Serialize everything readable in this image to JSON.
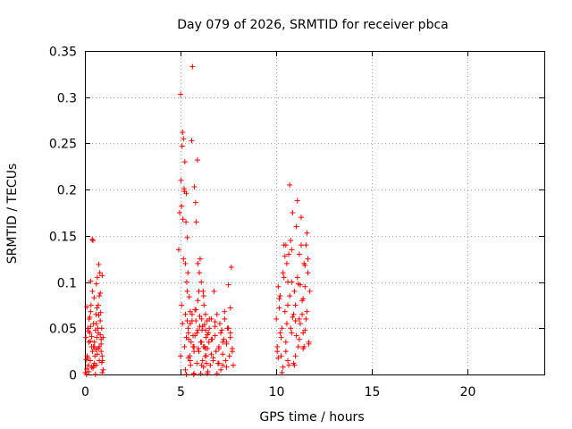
{
  "chart_data": {
    "type": "scatter",
    "title": "Day 079 of 2026, SRMTID for receiver pbca",
    "xlabel": "GPS time / hours",
    "ylabel": "SRMTID / TECUs",
    "xlim": [
      0,
      24
    ],
    "ylim": [
      0,
      0.35
    ],
    "x_ticks": [
      0,
      5,
      10,
      15,
      20
    ],
    "x_tick_labels": [
      "0",
      "5",
      "10",
      "15",
      "20"
    ],
    "y_ticks": [
      0,
      0.05,
      0.1,
      0.15,
      0.2,
      0.25,
      0.3,
      0.35
    ],
    "y_tick_labels": [
      "0",
      "0.05",
      "0.1",
      "0.15",
      "0.2",
      "0.25",
      "0.3",
      "0.35"
    ],
    "grid": true,
    "marker": "+",
    "series": [
      {
        "name": "SRMTID",
        "color": "#ff0000",
        "x": [
          0.02,
          0.05,
          0.08,
          0.1,
          0.12,
          0.15,
          0.18,
          0.2,
          0.22,
          0.25,
          0.28,
          0.3,
          0.32,
          0.35,
          0.38,
          0.4,
          0.42,
          0.45,
          0.48,
          0.5,
          0.52,
          0.55,
          0.58,
          0.6,
          0.62,
          0.65,
          0.68,
          0.7,
          0.72,
          0.75,
          0.78,
          0.8,
          0.82,
          0.85,
          0.88,
          0.9,
          0.92,
          0.95,
          0.1,
          0.2,
          0.3,
          0.4,
          0.5,
          0.6,
          0.7,
          0.8,
          0.9,
          0.15,
          0.25,
          0.35,
          0.45,
          0.55,
          0.65,
          0.75,
          0.85,
          0.6,
          0.63,
          0.8,
          0.85,
          0.9,
          0.7,
          0.75,
          0.5,
          0.45,
          0.3,
          0.35,
          0.95,
          0.88,
          0.72,
          0.58,
          0.42,
          0.28,
          0.18,
          0.08,
          4.9,
          4.95,
          5.0,
          5.02,
          5.05,
          5.08,
          5.1,
          5.12,
          5.15,
          5.18,
          5.2,
          5.22,
          5.25,
          5.28,
          5.3,
          5.32,
          5.35,
          5.38,
          5.4,
          5.42,
          5.45,
          5.48,
          5.5,
          5.52,
          5.55,
          5.58,
          5.6,
          5.62,
          5.65,
          5.68,
          5.7,
          5.72,
          5.75,
          5.78,
          5.8,
          5.82,
          5.85,
          5.88,
          5.9,
          5.92,
          5.95,
          5.98,
          6.0,
          6.02,
          6.05,
          6.08,
          6.1,
          6.12,
          6.15,
          6.18,
          6.2,
          6.22,
          6.25,
          6.28,
          6.3,
          6.32,
          6.35,
          6.38,
          6.4,
          6.42,
          6.45,
          6.48,
          6.5,
          6.55,
          6.6,
          6.65,
          6.7,
          6.75,
          6.8,
          6.85,
          6.9,
          6.95,
          7.0,
          7.05,
          7.1,
          7.15,
          7.2,
          7.25,
          7.3,
          7.35,
          7.4,
          7.45,
          7.5,
          7.55,
          7.6,
          7.65,
          7.7,
          7.75,
          5.0,
          5.05,
          5.1,
          5.15,
          5.2,
          5.25,
          5.3,
          5.35,
          5.4,
          5.5,
          5.6,
          5.65,
          5.7,
          5.75,
          5.8,
          5.85,
          5.9,
          5.95,
          6.0,
          6.05,
          6.1,
          6.15,
          6.2,
          6.25,
          6.3,
          6.35,
          6.4,
          6.5,
          6.6,
          6.7,
          6.8,
          6.9,
          7.0,
          7.1,
          7.2,
          7.3,
          7.4,
          7.5,
          7.6,
          7.7,
          5.25,
          5.3,
          5.35,
          5.4,
          5.5,
          5.7,
          5.9,
          6.1,
          6.2,
          6.3,
          6.4,
          6.6,
          6.8,
          7.0,
          7.2,
          7.4,
          7.6,
          10.0,
          10.05,
          10.1,
          10.15,
          10.2,
          10.25,
          10.3,
          10.35,
          10.4,
          10.45,
          10.5,
          10.55,
          10.6,
          10.65,
          10.7,
          10.75,
          10.8,
          10.85,
          10.9,
          10.95,
          11.0,
          11.05,
          11.1,
          11.15,
          11.2,
          11.25,
          11.3,
          11.35,
          11.4,
          11.45,
          11.5,
          11.55,
          11.6,
          11.65,
          11.7,
          11.75,
          10.1,
          10.2,
          10.3,
          10.4,
          10.5,
          10.6,
          10.7,
          10.8,
          10.9,
          11.0,
          11.1,
          11.2,
          11.3,
          11.4,
          11.5,
          11.6,
          11.7,
          10.15,
          10.35,
          10.55,
          10.75,
          10.95,
          11.15,
          11.35,
          11.55,
          10.25,
          10.45,
          10.65,
          10.85,
          11.05,
          11.25,
          11.45,
          11.65,
          10.05,
          10.5,
          11.0,
          11.5,
          10.6,
          10.8,
          11.2,
          11.4
        ],
        "y": [
          0.002,
          0.04,
          0.0,
          0.073,
          0.02,
          0.05,
          0.01,
          0.003,
          0.06,
          0.045,
          0.015,
          0.101,
          0.075,
          0.03,
          0.146,
          0.025,
          0.145,
          0.055,
          0.083,
          0.035,
          0.02,
          0.0,
          0.065,
          0.01,
          0.04,
          0.105,
          0.05,
          0.075,
          0.119,
          0.03,
          0.11,
          0.088,
          0.067,
          0.025,
          0.05,
          0.107,
          0.015,
          0.04,
          0.006,
          0.035,
          0.068,
          0.09,
          0.012,
          0.055,
          0.028,
          0.043,
          0.002,
          0.018,
          0.062,
          0.008,
          0.03,
          0.048,
          0.022,
          0.085,
          0.033,
          0.098,
          0.072,
          0.058,
          0.038,
          0.02,
          0.045,
          0.015,
          0.03,
          0.009,
          0.052,
          0.041,
          0.005,
          0.013,
          0.064,
          0.027,
          0.007,
          0.036,
          0.047,
          0.016,
          0.135,
          0.175,
          0.303,
          0.21,
          0.182,
          0.247,
          0.262,
          0.168,
          0.255,
          0.201,
          0.198,
          0.23,
          0.12,
          0.165,
          0.196,
          0.1,
          0.148,
          0.11,
          0.05,
          0.038,
          0.084,
          0.02,
          0.055,
          0.01,
          0.035,
          0.253,
          0.065,
          0.333,
          0.042,
          0.0,
          0.025,
          0.203,
          0.07,
          0.186,
          0.058,
          0.165,
          0.045,
          0.232,
          0.12,
          0.028,
          0.09,
          0.11,
          0.052,
          0.125,
          0.035,
          0.1,
          0.06,
          0.048,
          0.015,
          0.09,
          0.03,
          0.075,
          0.054,
          0.02,
          0.065,
          0.04,
          0.012,
          0.058,
          0.028,
          0.003,
          0.045,
          0.035,
          0.05,
          0.01,
          0.06,
          0.038,
          0.018,
          0.09,
          0.042,
          0.025,
          0.065,
          0.012,
          0.03,
          0.055,
          0.005,
          0.048,
          0.022,
          0.038,
          0.06,
          0.015,
          0.033,
          0.05,
          0.097,
          0.02,
          0.045,
          0.116,
          0.028,
          0.01,
          0.02,
          0.075,
          0.055,
          0.125,
          0.03,
          0.065,
          0.0,
          0.09,
          0.045,
          0.015,
          0.058,
          0.03,
          0.001,
          0.042,
          0.07,
          0.012,
          0.08,
          0.025,
          0.063,
          0.001,
          0.035,
          0.052,
          0.008,
          0.03,
          0.048,
          0.02,
          0.001,
          0.06,
          0.038,
          0.015,
          0.052,
          0.001,
          0.028,
          0.045,
          0.01,
          0.068,
          0.035,
          0.05,
          0.072,
          0.025,
          0.005,
          0.04,
          0.058,
          0.018,
          0.068,
          0.03,
          0.048,
          0.01,
          0.085,
          0.028,
          0.043,
          0.022,
          0.057,
          0.012,
          0.035,
          0.008,
          0.04,
          0.06,
          0.03,
          0.095,
          0.082,
          0.045,
          0.02,
          0.05,
          0.11,
          0.14,
          0.068,
          0.035,
          0.12,
          0.015,
          0.13,
          0.085,
          0.05,
          0.1,
          0.175,
          0.065,
          0.09,
          0.075,
          0.16,
          0.105,
          0.03,
          0.13,
          0.055,
          0.17,
          0.08,
          0.045,
          0.12,
          0.095,
          0.06,
          0.153,
          0.11,
          0.035,
          0.09,
          0.018,
          0.085,
          0.002,
          0.105,
          0.025,
          0.075,
          0.205,
          0.045,
          0.012,
          0.058,
          0.188,
          0.038,
          0.14,
          0.028,
          0.118,
          0.068,
          0.033,
          0.072,
          0.008,
          0.055,
          0.145,
          0.01,
          0.098,
          0.065,
          0.14,
          0.04,
          0.128,
          0.01,
          0.062,
          0.042,
          0.097,
          0.03,
          0.125,
          0.025,
          0.14,
          0.02,
          0.048,
          0.1,
          0.135,
          0.06,
          0.082
        ]
      }
    ]
  }
}
